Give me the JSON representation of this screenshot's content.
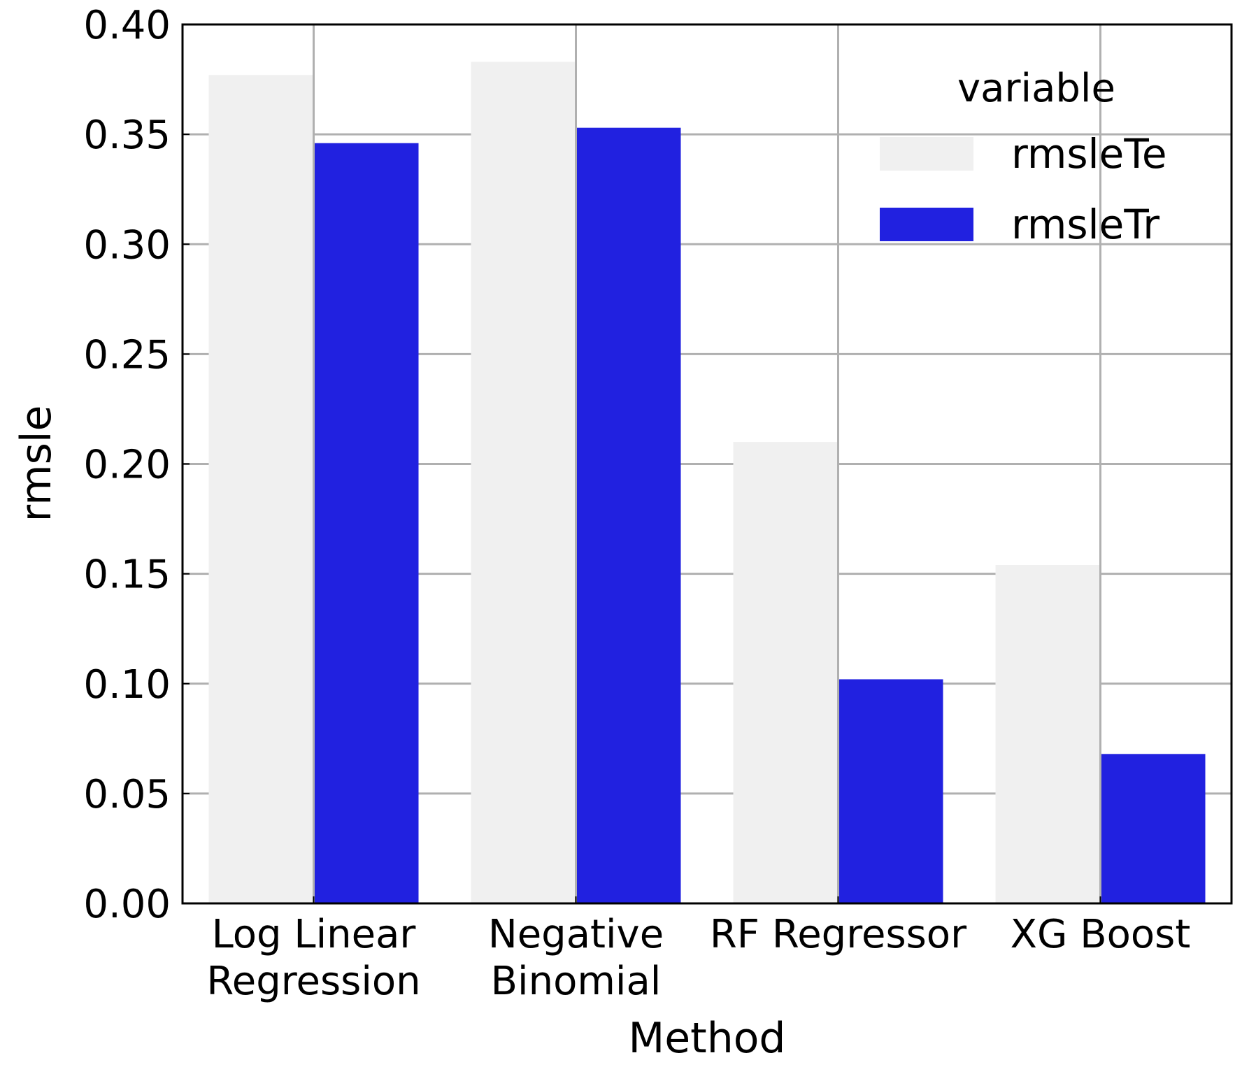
{
  "chart_data": {
    "type": "bar",
    "title": "",
    "xlabel": "Method",
    "ylabel": "rmsle",
    "ylim": [
      0.0,
      0.4
    ],
    "yticks": [
      "0.00",
      "0.05",
      "0.10",
      "0.15",
      "0.20",
      "0.25",
      "0.30",
      "0.35",
      "0.40"
    ],
    "ytick_values": [
      0.0,
      0.05,
      0.1,
      0.15,
      0.2,
      0.25,
      0.3,
      0.35,
      0.4
    ],
    "grid": true,
    "categories": [
      [
        "Log Linear",
        "Regression"
      ],
      [
        "Negative",
        "Binomial"
      ],
      [
        "RF Regressor"
      ],
      [
        "XG Boost"
      ]
    ],
    "series": [
      {
        "name": "rmsleTe",
        "color": "#f0f0f0",
        "values": [
          0.377,
          0.383,
          0.21,
          0.154
        ]
      },
      {
        "name": "rmsleTr",
        "color": "#2121e0",
        "values": [
          0.346,
          0.353,
          0.102,
          0.068
        ]
      }
    ],
    "legend": {
      "title": "variable",
      "position": "top-right"
    },
    "colors": {
      "grid": "#b0b0b0",
      "axis": "#000000"
    }
  }
}
